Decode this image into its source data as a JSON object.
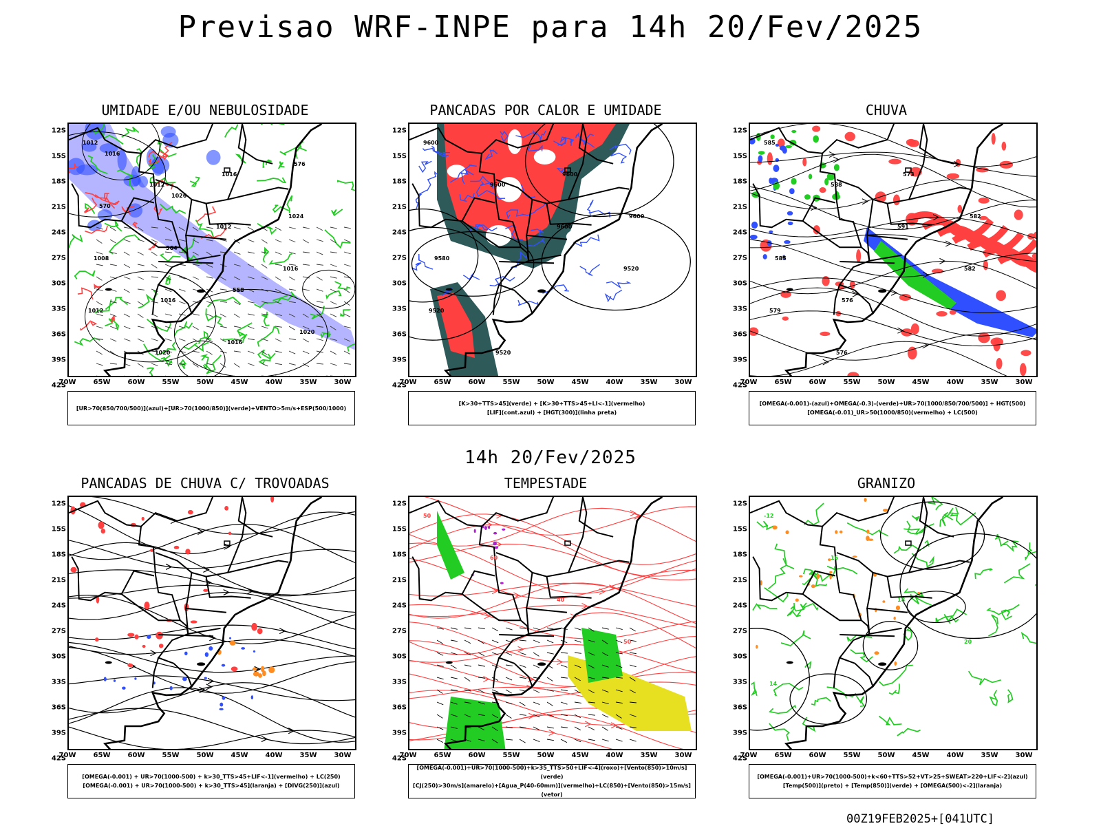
{
  "main_title": "Previsao WRF-INPE  para 14h 20/Fev/2025",
  "mid_title": "14h 20/Fev/2025",
  "footer": "00Z19FEB2025+[041UTC]",
  "lat_ticks": [
    "12S",
    "15S",
    "18S",
    "21S",
    "24S",
    "27S",
    "30S",
    "33S",
    "36S",
    "39S",
    "42S"
  ],
  "lon_ticks": [
    "70W",
    "65W",
    "60W",
    "55W",
    "50W",
    "45W",
    "40W",
    "35W",
    "30W"
  ],
  "colors": {
    "blue": "#3050ff",
    "lightblue": "#a8a8ff",
    "green": "#22cc22",
    "red": "#ff4040",
    "darkteal": "#2f5a5a",
    "orange": "#ff8c20",
    "yellow": "#e6e020",
    "purple": "#b020d0"
  },
  "panels": [
    {
      "title": "UMIDADE E/OU NEBULOSIDADE",
      "legend": [
        "[UR>70(850/700/500)](azul)+[UR>70(1000/850)](verde)+VENTO>5m/s+ESP(500/1000)"
      ],
      "contour_labels": [
        "1012",
        "1012",
        "1012",
        "1016",
        "1012",
        "1020",
        "1016",
        "1024",
        "1008",
        "1016",
        "1016",
        "576",
        "570",
        "564",
        "558",
        "1020",
        "1016",
        "1026"
      ]
    },
    {
      "title": "PANCADAS POR CALOR E UMIDADE",
      "legend": [
        "[K>30+TTS>45](verde) + [K>30+TTS>45+LI<-1](vermelho)",
        "[LIF](cont.azul) + [HGT(300)](linha preta)"
      ],
      "contour_labels": [
        "9600",
        "9600",
        "9600",
        "9520",
        "9520",
        "9520",
        "9600",
        "9600",
        "9580"
      ]
    },
    {
      "title": "CHUVA",
      "legend": [
        "[OMEGA(-0.001)-(azul)+OMEGA(-0.3)-(verde)+UR>70(1000/850/700/500)] + HGT(500)",
        "[OMEGA(-0.01)_UR>50(1000/850)(vermelho) + LC(500)"
      ],
      "contour_labels": [
        "585",
        "588",
        "591",
        "582",
        "579",
        "576",
        "573",
        "582",
        "585",
        "576"
      ]
    },
    {
      "title": "PANCADAS DE CHUVA C/ TROVOADAS",
      "legend": [
        "[OMEGA(-0.001) + UR>70(1000-500) + k>30_TTS>45+LIF<-1](vermelho) + LC(250)",
        "[OMEGA(-0.001) + UR>70(1000-500) + k>30_TTS>45](laranja) + [DIVG(250)](azul)"
      ],
      "contour_labels": []
    },
    {
      "title": "TEMPESTADE",
      "legend": [
        "[OMEGA(-0.001)+UR>70(1000-500)+k>35_TTS>50+LIF<-4](roxo)+[Vento(850)>10m/s](verde)",
        "[CJ(250)>30m/s](amarelo)+[Agua_P(40-60mm)](vermelho)+LC(850)+[Vento(850)>15m/s](vetor)"
      ],
      "contour_labels": [
        "50",
        "60",
        "40",
        "50"
      ]
    },
    {
      "title": "GRANIZO",
      "legend": [
        "[OMEGA(-0.001)+UR>70(1000-500)+k<60+TTS>52+VT>25+SWEAT>220+LIF<-2](azul)",
        "[Temp(500)](preto) + [Temp(850)](verde) + [OMEGA(500)<-2](laranja)"
      ],
      "contour_labels": [
        "-12",
        "16",
        "18",
        "20",
        "14"
      ]
    }
  ]
}
